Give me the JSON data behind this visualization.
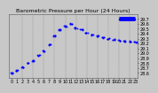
{
  "title": "Barometric Pressure per Hour (24 Hours)",
  "bg_color": "#c8c8c8",
  "plot_bg_color": "#c8c8c8",
  "marker_color": "#0000ff",
  "grid_color": "#888888",
  "x_hours": [
    0,
    1,
    2,
    3,
    4,
    5,
    6,
    7,
    8,
    9,
    10,
    11,
    12,
    13,
    14,
    15,
    16,
    17,
    18,
    19,
    20,
    21,
    22,
    23
  ],
  "pressure": [
    28.6,
    28.65,
    28.72,
    28.8,
    28.85,
    28.95,
    29.05,
    29.18,
    29.35,
    29.48,
    29.55,
    29.6,
    29.52,
    29.48,
    29.42,
    29.38,
    29.35,
    29.32,
    29.3,
    29.28,
    29.26,
    29.25,
    29.24,
    29.23
  ],
  "ylim_min": 28.5,
  "ylim_max": 29.8,
  "ytick_values": [
    28.6,
    28.7,
    28.8,
    28.9,
    29.0,
    29.1,
    29.2,
    29.3,
    29.4,
    29.5,
    29.6,
    29.7
  ],
  "xtick_positions": [
    0,
    1,
    2,
    3,
    4,
    5,
    6,
    7,
    8,
    9,
    10,
    11,
    12,
    13,
    14,
    15,
    16,
    17,
    18,
    19,
    20,
    21,
    22,
    23
  ],
  "xtick_labels": [
    "0",
    "1",
    "2",
    "3",
    "4",
    "5",
    "6",
    "7",
    "8",
    "9",
    "10",
    "11",
    "12",
    "13",
    "14",
    "15",
    "16",
    "17",
    "18",
    "19",
    "20",
    "21",
    "22",
    "23"
  ],
  "vgrid_positions": [
    2,
    4,
    6,
    8,
    10,
    12,
    14,
    16,
    18,
    20,
    22
  ],
  "flat_segment_start": 20,
  "flat_segment_end": 23,
  "flat_value": 29.7,
  "title_fontsize": 4.5,
  "tick_fontsize": 3.5,
  "scatter_size": 1.8
}
